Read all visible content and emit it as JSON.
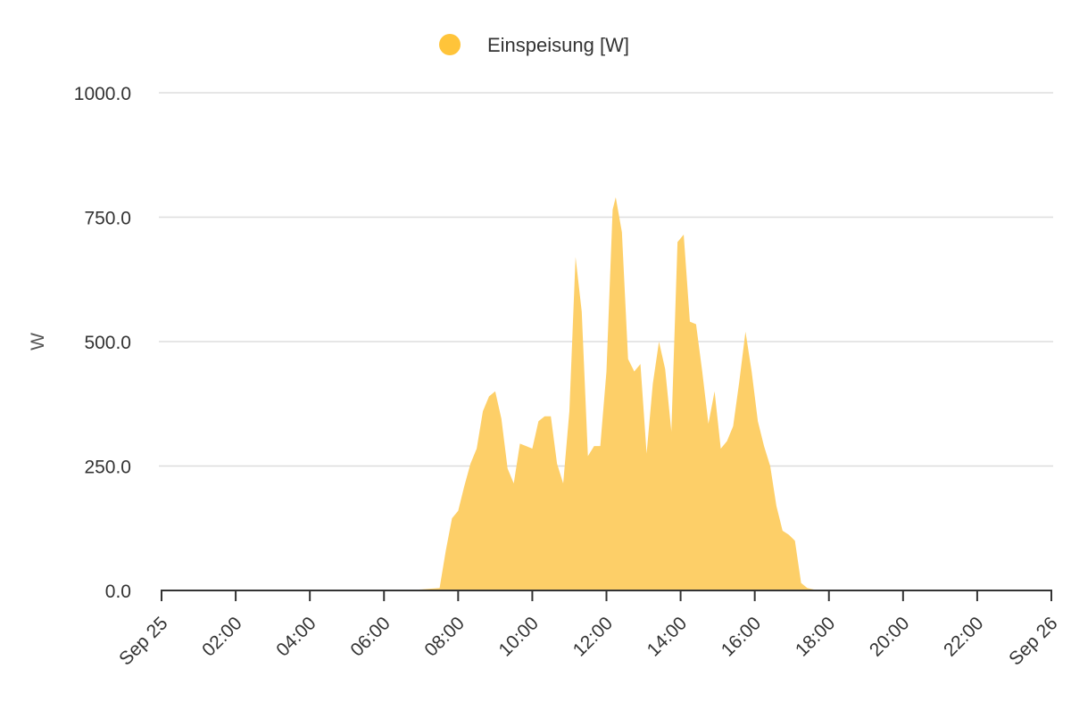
{
  "chart_data": {
    "type": "area",
    "legend": {
      "label": "Einspeisung [W]",
      "color": "#FFC43A",
      "placement": "top-center"
    },
    "ylabel": "W",
    "ylim": [
      0,
      1000
    ],
    "yticks": [
      {
        "value": 0,
        "label": "0.0"
      },
      {
        "value": 250,
        "label": "250.0"
      },
      {
        "value": 500,
        "label": "500.0"
      },
      {
        "value": 750,
        "label": "750.0"
      },
      {
        "value": 1000,
        "label": "1000.0"
      }
    ],
    "xlim": [
      "Sep 25 00:00",
      "Sep 26 00:00"
    ],
    "xticks": [
      {
        "time": "00:00",
        "label": "Sep 25"
      },
      {
        "time": "02:00",
        "label": "02:00"
      },
      {
        "time": "04:00",
        "label": "04:00"
      },
      {
        "time": "06:00",
        "label": "06:00"
      },
      {
        "time": "08:00",
        "label": "08:00"
      },
      {
        "time": "10:00",
        "label": "10:00"
      },
      {
        "time": "12:00",
        "label": "12:00"
      },
      {
        "time": "14:00",
        "label": "14:00"
      },
      {
        "time": "16:00",
        "label": "16:00"
      },
      {
        "time": "18:00",
        "label": "18:00"
      },
      {
        "time": "20:00",
        "label": "20:00"
      },
      {
        "time": "22:00",
        "label": "22:00"
      },
      {
        "time": "24:00",
        "label": "Sep 26"
      }
    ],
    "grid": true,
    "fill_color": "#FDCF68",
    "series": [
      {
        "name": "Einspeisung [W]",
        "points": [
          [
            "00:00",
            0
          ],
          [
            "06:30",
            0
          ],
          [
            "07:00",
            2
          ],
          [
            "07:30",
            5
          ],
          [
            "07:40",
            80
          ],
          [
            "07:50",
            145
          ],
          [
            "08:00",
            160
          ],
          [
            "08:10",
            210
          ],
          [
            "08:20",
            255
          ],
          [
            "08:30",
            285
          ],
          [
            "08:40",
            360
          ],
          [
            "08:50",
            390
          ],
          [
            "09:00",
            400
          ],
          [
            "09:10",
            345
          ],
          [
            "09:20",
            245
          ],
          [
            "09:30",
            215
          ],
          [
            "09:40",
            295
          ],
          [
            "09:50",
            290
          ],
          [
            "10:00",
            285
          ],
          [
            "10:10",
            340
          ],
          [
            "10:20",
            350
          ],
          [
            "10:30",
            350
          ],
          [
            "10:40",
            255
          ],
          [
            "10:50",
            215
          ],
          [
            "11:00",
            360
          ],
          [
            "11:10",
            670
          ],
          [
            "11:20",
            560
          ],
          [
            "11:30",
            270
          ],
          [
            "11:40",
            290
          ],
          [
            "11:50",
            290
          ],
          [
            "12:00",
            440
          ],
          [
            "12:10",
            765
          ],
          [
            "12:15",
            790
          ],
          [
            "12:25",
            720
          ],
          [
            "12:35",
            465
          ],
          [
            "12:45",
            440
          ],
          [
            "12:55",
            455
          ],
          [
            "13:05",
            275
          ],
          [
            "13:15",
            415
          ],
          [
            "13:25",
            500
          ],
          [
            "13:35",
            445
          ],
          [
            "13:45",
            320
          ],
          [
            "13:55",
            700
          ],
          [
            "14:05",
            715
          ],
          [
            "14:15",
            540
          ],
          [
            "14:25",
            535
          ],
          [
            "14:35",
            440
          ],
          [
            "14:45",
            335
          ],
          [
            "14:55",
            400
          ],
          [
            "15:05",
            285
          ],
          [
            "15:15",
            300
          ],
          [
            "15:25",
            330
          ],
          [
            "15:35",
            420
          ],
          [
            "15:45",
            520
          ],
          [
            "15:55",
            440
          ],
          [
            "16:05",
            340
          ],
          [
            "16:15",
            290
          ],
          [
            "16:25",
            250
          ],
          [
            "16:35",
            170
          ],
          [
            "16:45",
            120
          ],
          [
            "16:55",
            112
          ],
          [
            "17:05",
            100
          ],
          [
            "17:15",
            15
          ],
          [
            "17:25",
            5
          ],
          [
            "17:35",
            2
          ],
          [
            "17:50",
            0
          ],
          [
            "24:00",
            0
          ]
        ]
      }
    ]
  }
}
